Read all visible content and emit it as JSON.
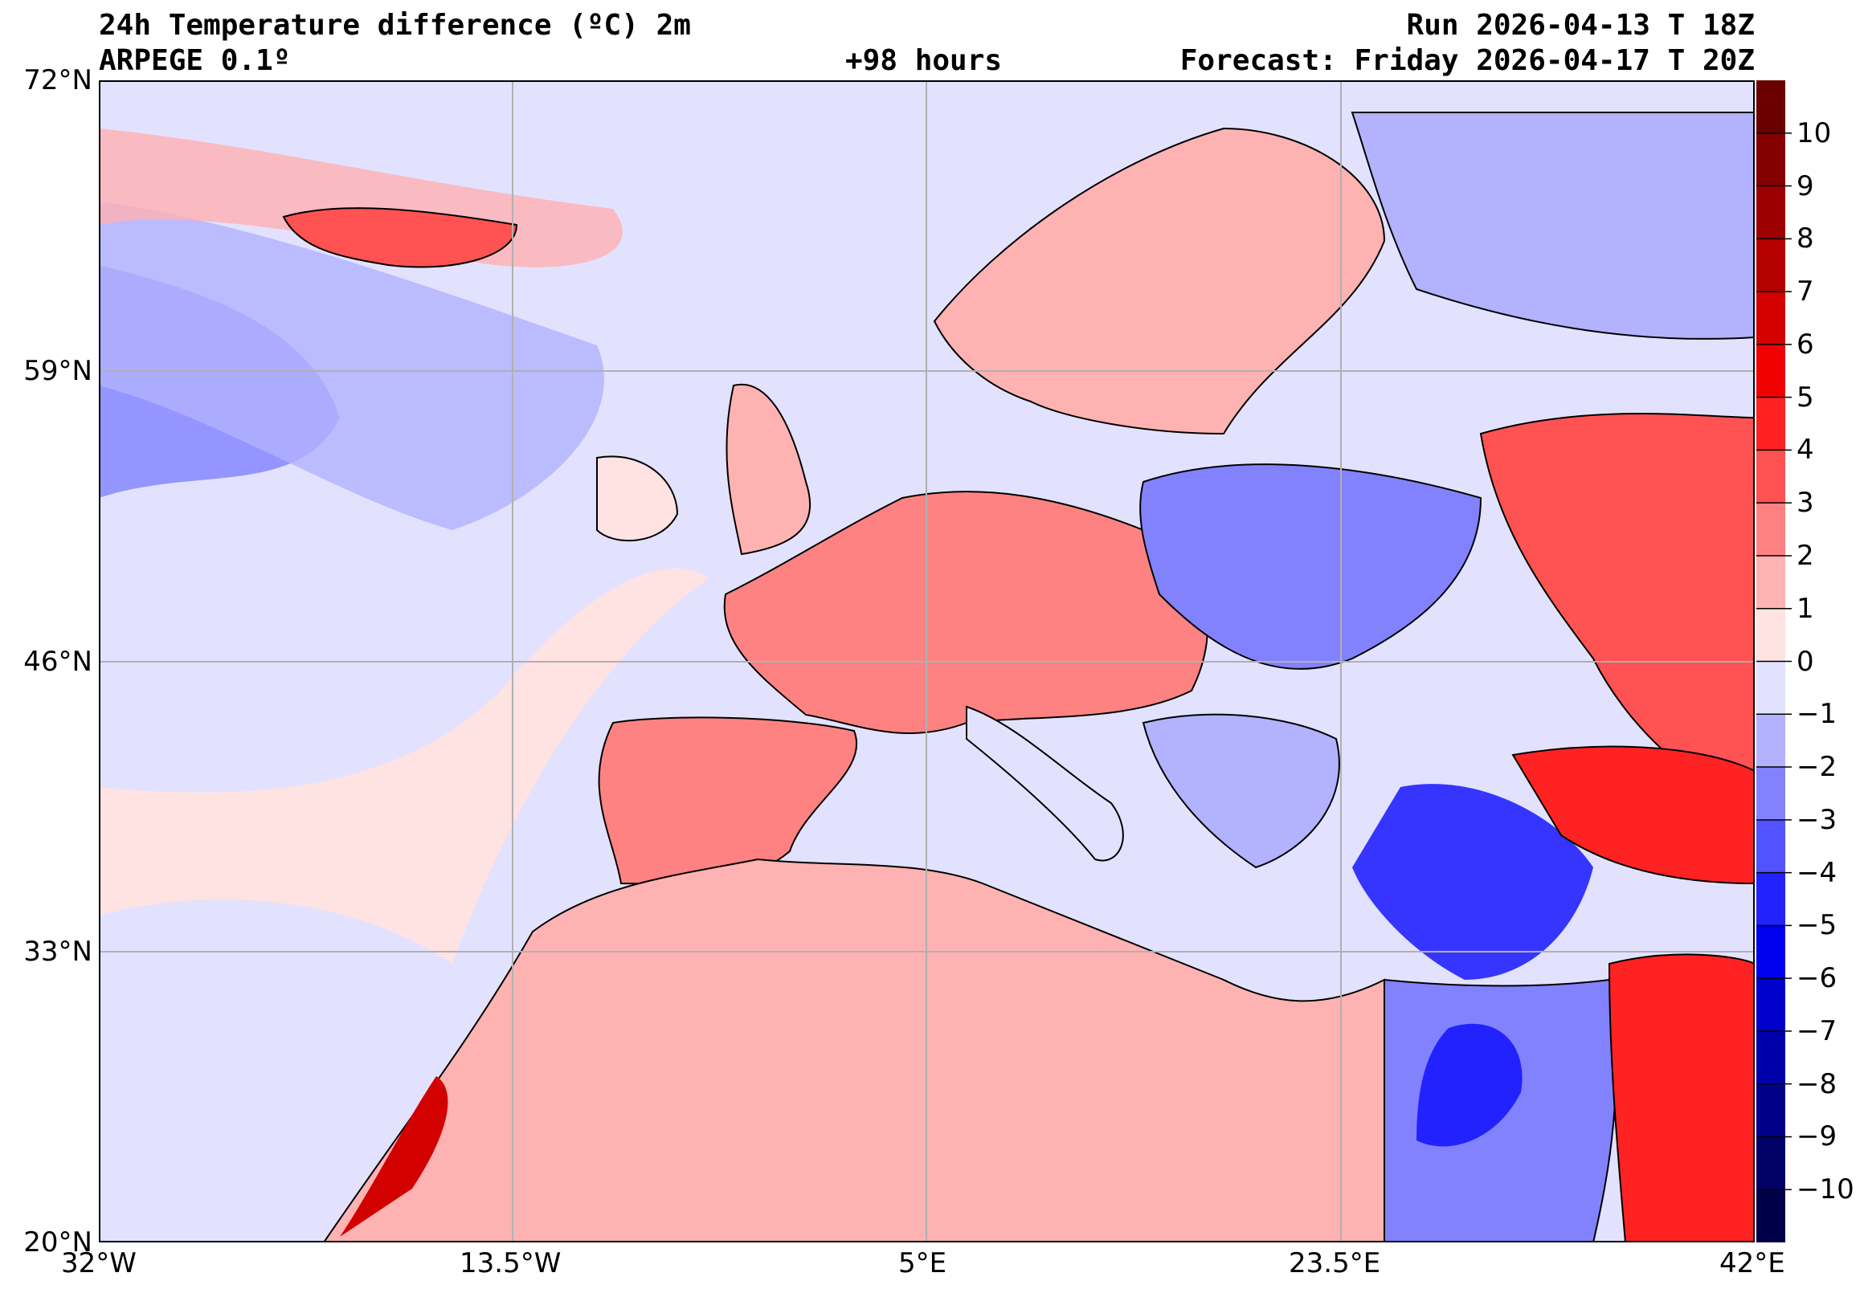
{
  "header": {
    "title": "24h Temperature difference (ºC) 2m",
    "model": "ARPEGE 0.1º",
    "lead_time": "+98 hours",
    "run": "Run 2026-04-13 T 18Z",
    "forecast": "Forecast: Friday 2026-04-17 T 20Z"
  },
  "axes": {
    "lat_labels": [
      "72°N",
      "59°N",
      "46°N",
      "33°N",
      "20°N"
    ],
    "lat_values": [
      72,
      59,
      46,
      33,
      20
    ],
    "lon_labels": [
      "32°W",
      "13.5°W",
      "5°E",
      "23.5°E",
      "42°E"
    ],
    "lon_values": [
      -32,
      -13.5,
      5,
      23.5,
      42
    ],
    "lat_range": [
      20,
      72
    ],
    "lon_range": [
      -32,
      42
    ]
  },
  "colorbar": {
    "range": [
      -11,
      11
    ],
    "tick_labels": [
      "10",
      "9",
      "8",
      "7",
      "6",
      "5",
      "4",
      "3",
      "2",
      "1",
      "0",
      "−1",
      "−2",
      "−3",
      "−4",
      "−5",
      "−6",
      "−7",
      "−8",
      "−9",
      "−10"
    ],
    "tick_values": [
      10,
      9,
      8,
      7,
      6,
      5,
      4,
      3,
      2,
      1,
      0,
      -1,
      -2,
      -3,
      -4,
      -5,
      -6,
      -7,
      -8,
      -9,
      -10
    ],
    "colors_top_to_bottom": [
      "#6a0000",
      "#820000",
      "#9c0000",
      "#b50000",
      "#d30000",
      "#f00000",
      "#ff2222",
      "#ff5252",
      "#ff8282",
      "#ffb2b2",
      "#ffe2e2",
      "#e2e2ff",
      "#b2b2ff",
      "#8282ff",
      "#5252ff",
      "#2222ff",
      "#0000ee",
      "#0000cc",
      "#0000aa",
      "#000088",
      "#000066",
      "#000048"
    ]
  }
}
